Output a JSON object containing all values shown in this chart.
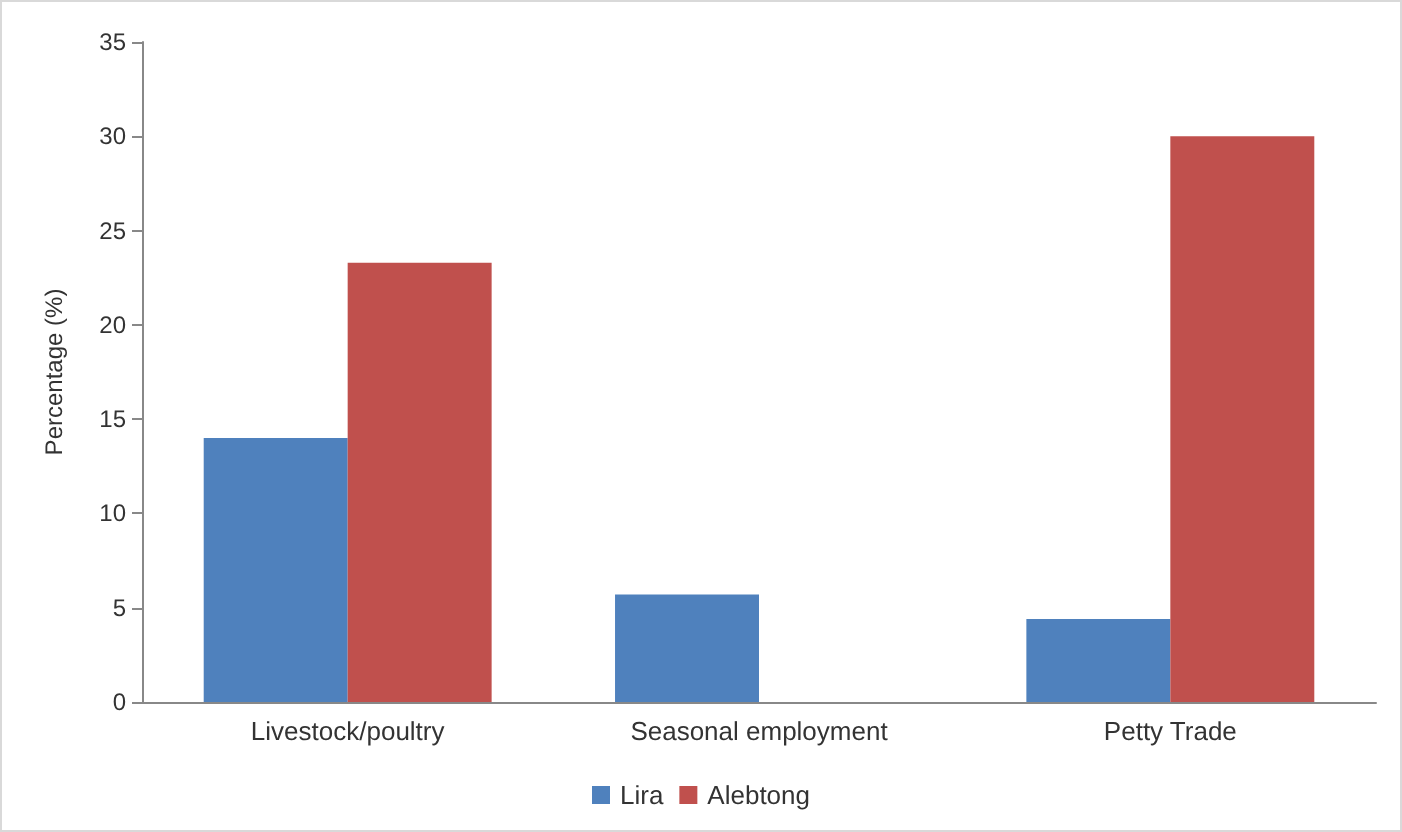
{
  "chart_data": {
    "type": "bar",
    "ylabel": "Percentage (%)",
    "categories": [
      "Livestock/poultry",
      "Seasonal employment",
      "Petty Trade"
    ],
    "series": [
      {
        "name": "Lira",
        "color": "#4f81bd",
        "values": [
          14,
          5.7,
          4.4
        ]
      },
      {
        "name": "Alebtong",
        "color": "#c0504d",
        "values": [
          23.3,
          0,
          30
        ]
      }
    ],
    "ylim": [
      0,
      35
    ],
    "yticks": [
      0,
      5,
      10,
      15,
      20,
      25,
      30,
      35
    ],
    "grid": false,
    "legend": "bottom"
  }
}
